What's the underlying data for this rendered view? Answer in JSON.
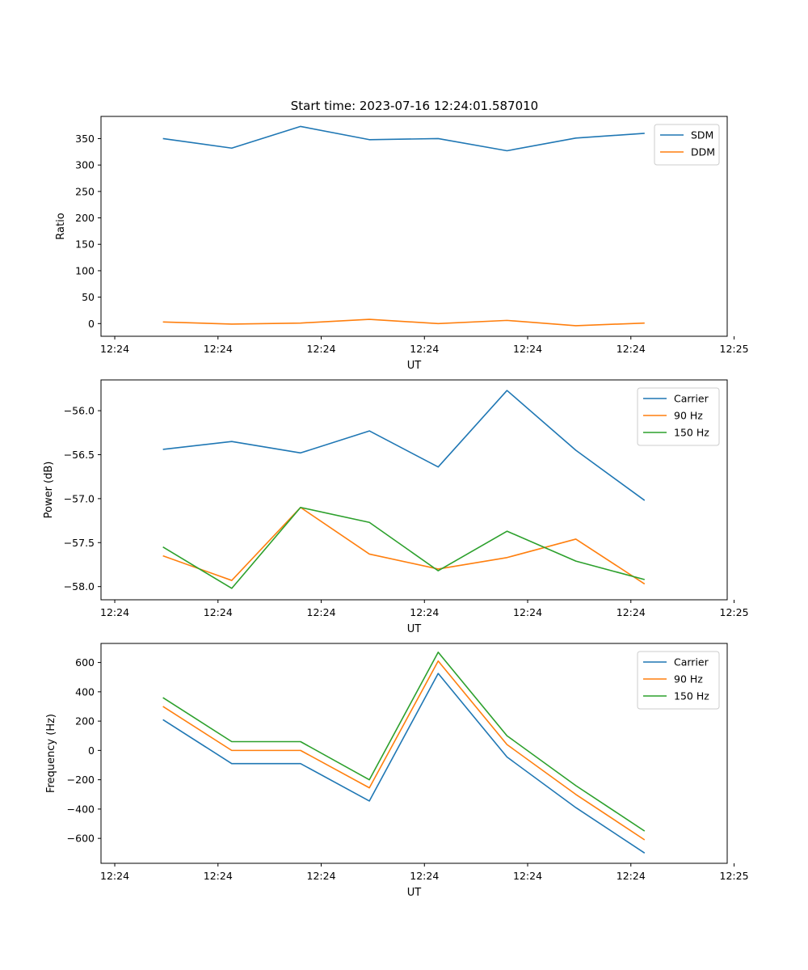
{
  "figure_title": "Start time: 2023-07-16 12:24:01.587010",
  "chart_data": [
    {
      "type": "line",
      "title": "Start time: 2023-07-16 12:24:01.587010",
      "xlabel": "UT",
      "ylabel": "Ratio",
      "xlim": [
        0,
        9.1
      ],
      "xticks": [
        0.2,
        1.7,
        3.2,
        4.7,
        6.2,
        7.7,
        9.2
      ],
      "xtick_labels": [
        "12:24",
        "12:24",
        "12:24",
        "12:24",
        "12:24",
        "12:24",
        "12:25"
      ],
      "ylim": [
        -24,
        392
      ],
      "yticks": [
        0,
        50,
        100,
        150,
        200,
        250,
        300,
        350
      ],
      "ytick_labels": [
        "0",
        "50",
        "100",
        "150",
        "200",
        "250",
        "300",
        "350"
      ],
      "x": [
        0.9,
        1.9,
        2.9,
        3.9,
        4.9,
        5.9,
        6.9,
        7.9
      ],
      "series": [
        {
          "name": "SDM",
          "color": "#1f77b4",
          "values": [
            350,
            332,
            373,
            348,
            350,
            327,
            351,
            360
          ]
        },
        {
          "name": "DDM",
          "color": "#ff7f0e",
          "values": [
            3,
            -1,
            1,
            8,
            0,
            6,
            -4,
            1
          ]
        }
      ],
      "legend": "top-right"
    },
    {
      "type": "line",
      "title": "",
      "xlabel": "UT",
      "ylabel": "Power (dB)",
      "xlim": [
        0,
        9.1
      ],
      "xticks": [
        0.2,
        1.7,
        3.2,
        4.7,
        6.2,
        7.7,
        9.2
      ],
      "xtick_labels": [
        "12:24",
        "12:24",
        "12:24",
        "12:24",
        "12:24",
        "12:24",
        "12:25"
      ],
      "ylim": [
        -58.15,
        -55.65
      ],
      "yticks": [
        -58.0,
        -57.5,
        -57.0,
        -56.5,
        -56.0
      ],
      "ytick_labels": [
        "−58.0",
        "−57.5",
        "−57.0",
        "−56.5",
        "−56.0"
      ],
      "x": [
        0.9,
        1.9,
        2.9,
        3.9,
        4.9,
        5.9,
        6.9,
        7.9
      ],
      "series": [
        {
          "name": "Carrier",
          "color": "#1f77b4",
          "values": [
            -56.44,
            -56.35,
            -56.48,
            -56.23,
            -56.64,
            -55.77,
            -56.45,
            -57.02
          ]
        },
        {
          "name": "90 Hz",
          "color": "#ff7f0e",
          "values": [
            -57.65,
            -57.93,
            -57.1,
            -57.63,
            -57.8,
            -57.67,
            -57.46,
            -57.97
          ]
        },
        {
          "name": "150 Hz",
          "color": "#2ca02c",
          "values": [
            -57.55,
            -58.02,
            -57.1,
            -57.27,
            -57.82,
            -57.37,
            -57.71,
            -57.92
          ]
        }
      ],
      "legend": "top-right"
    },
    {
      "type": "line",
      "title": "",
      "xlabel": "UT",
      "ylabel": "Frequency (Hz)",
      "xlim": [
        0,
        9.1
      ],
      "xticks": [
        0.2,
        1.7,
        3.2,
        4.7,
        6.2,
        7.7,
        9.2
      ],
      "xtick_labels": [
        "12:24",
        "12:24",
        "12:24",
        "12:24",
        "12:24",
        "12:24",
        "12:25"
      ],
      "ylim": [
        -770,
        730
      ],
      "yticks": [
        -600,
        -400,
        -200,
        0,
        200,
        400,
        600
      ],
      "ytick_labels": [
        "−600",
        "−400",
        "−200",
        "0",
        "200",
        "400",
        "600"
      ],
      "x": [
        0.9,
        1.9,
        2.9,
        3.9,
        4.9,
        5.9,
        6.9,
        7.9
      ],
      "series": [
        {
          "name": "Carrier",
          "color": "#1f77b4",
          "values": [
            210,
            -90,
            -90,
            -345,
            525,
            -45,
            -390,
            -700
          ]
        },
        {
          "name": "90 Hz",
          "color": "#ff7f0e",
          "values": [
            300,
            0,
            0,
            -255,
            610,
            40,
            -300,
            -610
          ]
        },
        {
          "name": "150 Hz",
          "color": "#2ca02c",
          "values": [
            360,
            60,
            60,
            -200,
            670,
            100,
            -240,
            -550
          ]
        }
      ],
      "legend": "top-right"
    }
  ]
}
